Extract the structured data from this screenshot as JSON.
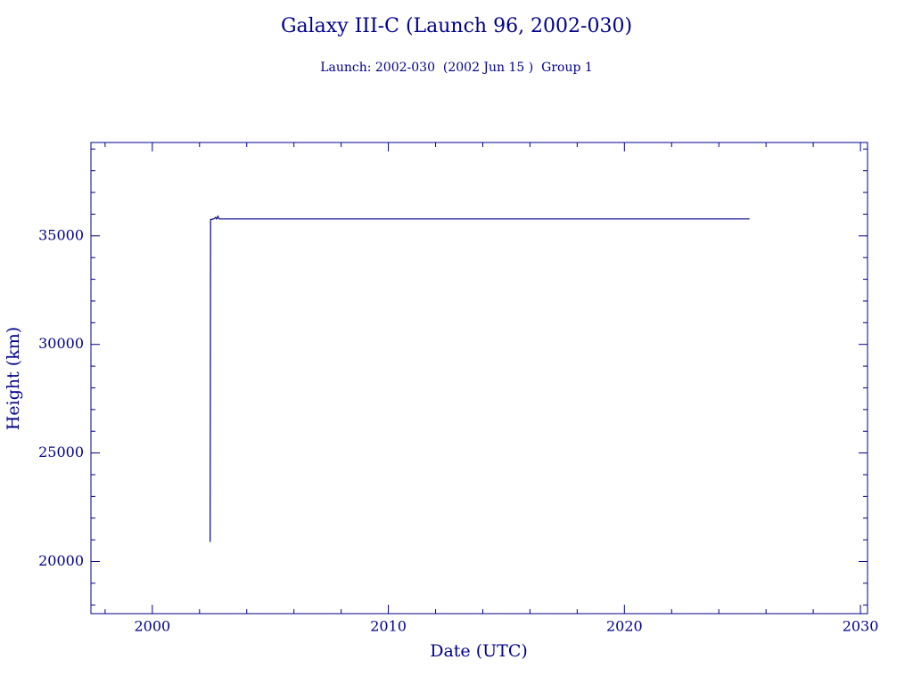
{
  "chart_data": {
    "type": "line",
    "title": "Galaxy III-C (Launch 96, 2002-030)",
    "subtitle": "Launch: 2002-030  (2002 Jun 15 )  Group 1",
    "x_label": "Date (UTC)",
    "y_label": "Height (km)",
    "color": "#00008b",
    "series": [
      {
        "x": [
          2002.45,
          2002.47,
          2002.6,
          2002.68,
          2002.72,
          2002.78,
          2002.82,
          2003.0,
          2010,
          2020,
          2025.3
        ],
        "values": [
          20900,
          35750,
          35780,
          35850,
          35780,
          35900,
          35780,
          35780,
          35780,
          35780,
          35780
        ]
      }
    ],
    "xlim": [
      1997.4,
      2030.3
    ],
    "ylim": [
      17600,
      39300
    ],
    "xticks": [
      2000,
      2010,
      2020,
      2030
    ],
    "yticks": [
      20000,
      25000,
      30000,
      35000
    ],
    "xminor_ticks": [
      1998,
      2002,
      2004,
      2006,
      2008,
      2012,
      2014,
      2016,
      2018,
      2022,
      2024,
      2026,
      2028
    ],
    "yminor_ticks": [
      18000,
      19000,
      21000,
      22000,
      23000,
      24000,
      26000,
      27000,
      28000,
      29000,
      31000,
      32000,
      33000,
      34000,
      36000,
      37000,
      38000,
      39000
    ]
  }
}
